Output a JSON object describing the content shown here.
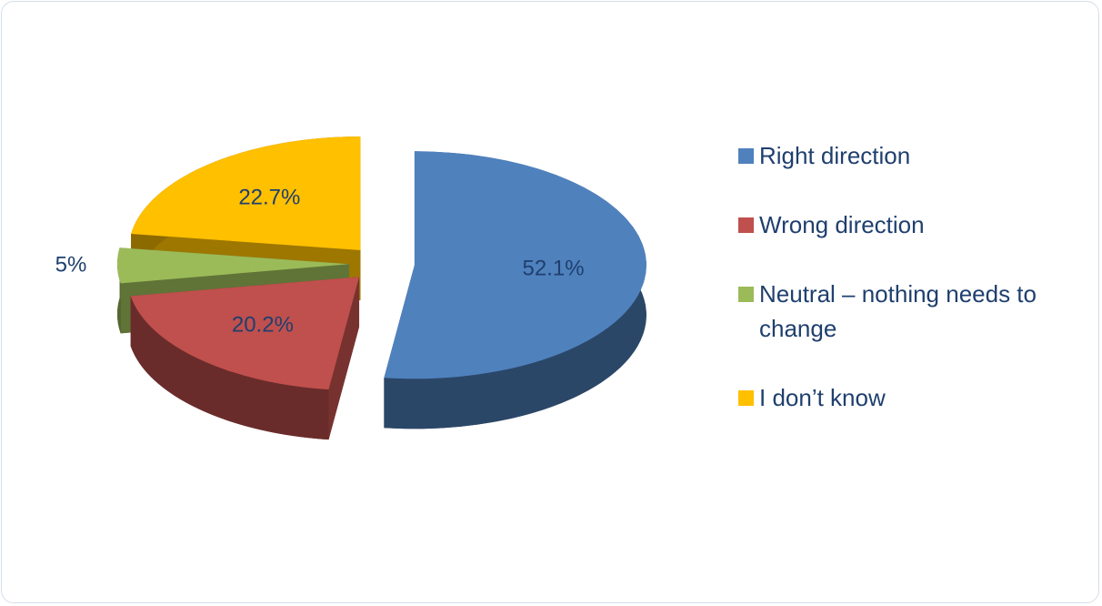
{
  "chart_data": {
    "type": "pie",
    "categories": [
      "Right direction",
      "Wrong direction",
      "Neutral – nothing needs to change",
      "I don’t know"
    ],
    "values": [
      52.1,
      20.2,
      5,
      22.7
    ],
    "value_labels": [
      "52.1%",
      "20.2%",
      "5%",
      "22.7%"
    ],
    "colors": [
      "#4f81bd",
      "#c0504d",
      "#9bbb59",
      "#ffc000"
    ],
    "legend": "right"
  }
}
